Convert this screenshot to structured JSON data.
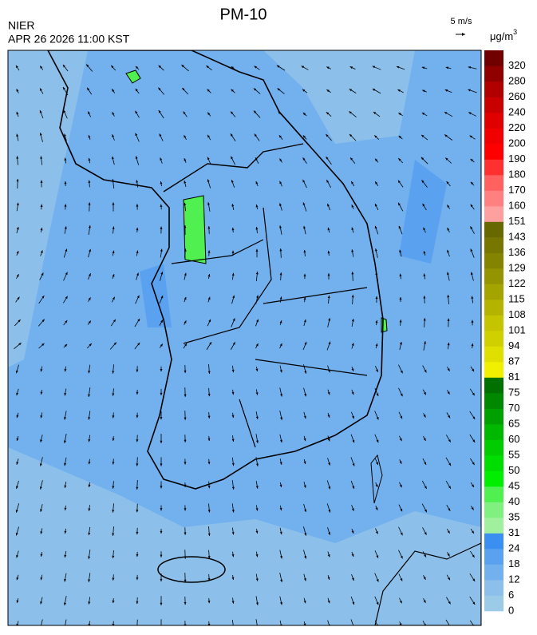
{
  "header": {
    "title": "PM-10",
    "agency": "NIER",
    "datetime": "APR 26 2026 11:00 KST",
    "wind_scale": "5 m/s"
  },
  "colorbar": {
    "unit": {
      "base": "μg/m",
      "exp": "3"
    },
    "labels": [
      0,
      6,
      12,
      18,
      24,
      31,
      35,
      40,
      45,
      50,
      55,
      60,
      65,
      70,
      75,
      81,
      87,
      94,
      101,
      108,
      115,
      122,
      129,
      136,
      143,
      151,
      160,
      170,
      180,
      190,
      200,
      220,
      240,
      260,
      280,
      320
    ],
    "colors": [
      "#9ccbe8",
      "#8cc0ea",
      "#72b0ee",
      "#5aa2f0",
      "#3b8ff0",
      "#a0f0a0",
      "#80f080",
      "#50f050",
      "#00ee00",
      "#00dd00",
      "#00cc00",
      "#00b800",
      "#00a000",
      "#008800",
      "#007000",
      "#f0f000",
      "#e0e000",
      "#d0d000",
      "#c4c400",
      "#b4b400",
      "#a4a400",
      "#949400",
      "#848400",
      "#767600",
      "#686800",
      "#ffa0a0",
      "#ff8080",
      "#ff6060",
      "#ff3030",
      "#ff0000",
      "#f00000",
      "#e00000",
      "#c80000",
      "#b00000",
      "#900000",
      "#700000"
    ]
  }
}
